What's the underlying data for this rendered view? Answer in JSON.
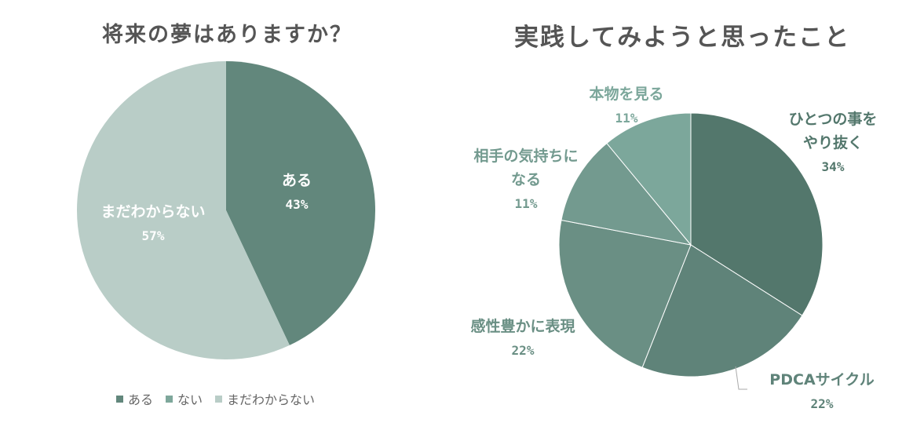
{
  "chart_data": [
    {
      "type": "pie",
      "title": "将来の夢はありますか？",
      "categories": [
        "ある",
        "ない",
        "まだわからない"
      ],
      "values": [
        43,
        0,
        57
      ],
      "labels": [
        "43%",
        "",
        "57%"
      ],
      "colors": [
        "#62877c",
        "#7ea79b",
        "#b9cdc7"
      ],
      "label_colors": [
        "#ffffff",
        "#ffffff",
        "#ffffff"
      ],
      "legend": "bottom"
    },
    {
      "type": "pie",
      "title": "実践してみようと思ったこと",
      "categories": [
        "ひとつの事を\nやり抜く",
        "PDCAサイクル",
        "感性豊かに表現",
        "相手の気持ちに\nなる",
        "本物を見る"
      ],
      "values": [
        34,
        22,
        22,
        11,
        11
      ],
      "labels": [
        "34%",
        "22%",
        "22%",
        "11%",
        "11%"
      ],
      "colors": [
        "#53776c",
        "#5f8379",
        "#6a8f84",
        "#739a8f",
        "#7ca79b"
      ],
      "label_colors": [
        "#53776c",
        "#5f8379",
        "#6a8f84",
        "#739a8f",
        "#7ca79b"
      ]
    }
  ]
}
